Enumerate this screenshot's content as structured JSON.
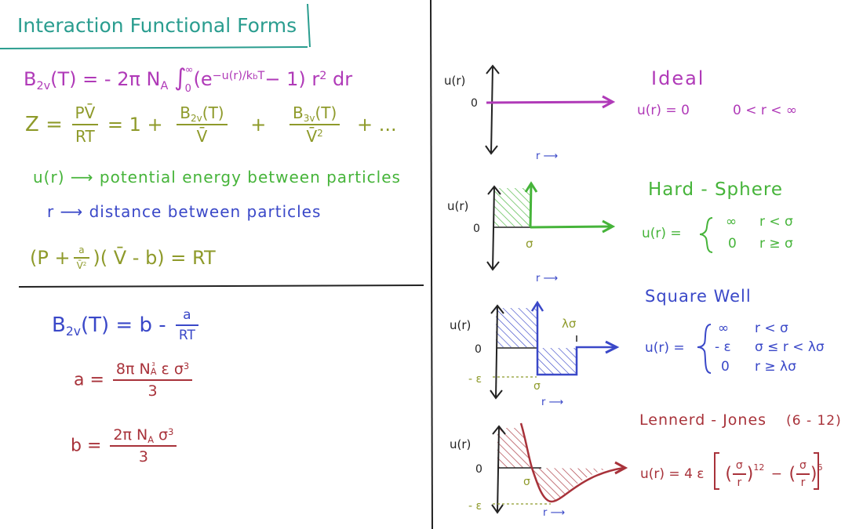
{
  "colors": {
    "teal": "#2a9d8f",
    "purple": "#b03ab8",
    "olive": "#8e9a2a",
    "green": "#46b43a",
    "blue": "#3a48c8",
    "red": "#a8323a",
    "ink": "#222222"
  },
  "title": "Interaction Functional Forms",
  "left": {
    "b2v_def": {
      "lhs_B": "B",
      "lhs_sub": "2v",
      "lhs_rest": "(T) = - 2π N",
      "NA_sub": "A",
      "int_sym": "∫",
      "int_upper": "∞",
      "int_lower": "0",
      "paren_open": "(e",
      "exp": "−u(r)/k",
      "exp_sub": "b",
      "exp_T": "T",
      "tail": "− 1) r",
      "r_sup": "2",
      "dr": " dr"
    },
    "z_eq": {
      "Z": "Z =",
      "f1_num": "PV̄",
      "f1_den": "RT",
      "eq_one": "= 1 +",
      "f2_num": "B",
      "f2_num_sub": "2v",
      "f2_num_rest": "(T)",
      "f2_den": "V̄",
      "plus": "+",
      "f3_num": "B",
      "f3_num_sub": "3v",
      "f3_num_rest": "(T)",
      "f3_den": "V̄",
      "f3_den_sup": "2",
      "dots": "+ ..."
    },
    "defs": {
      "u_line": "u(r) ⟶ potential energy between particles",
      "r_line": "r ⟶ distance between particles"
    },
    "vdw": {
      "open": "(P +",
      "frac_num": "a",
      "frac_den": "V̄",
      "frac_den_sup": "2",
      "middle": ")( V̄ - b) = RT"
    },
    "b2v_vdw": {
      "B": "B",
      "B_sub": "2v",
      "rest": "(T) = b -",
      "frac_num": "a",
      "frac_den": "RT"
    },
    "a_eq": {
      "lhs": "a =",
      "num_a": "8π N",
      "num_sub": "A",
      "num_sup": "3",
      "num_rest": " ε σ",
      "num_sup2": "3",
      "den": "3"
    },
    "b_eq": {
      "lhs": "b =",
      "num_a": "2π N",
      "num_sub": "A",
      "num_rest": " σ",
      "num_sup": "3",
      "den": "3"
    }
  },
  "plots": {
    "ideal": {
      "ylabel": "u(r)",
      "zero": "0",
      "xlabel": "r ⟶",
      "name": "Ideal",
      "formula": "u(r) = 0",
      "range": "0 < r < ∞"
    },
    "hard_sphere": {
      "ylabel": "u(r)",
      "zero": "0",
      "sigma": "σ",
      "xlabel": "r ⟶",
      "name": "Hard - Sphere",
      "lhs": "u(r) =",
      "cases": [
        {
          "value": "∞",
          "cond": "r < σ"
        },
        {
          "value": "0",
          "cond": "r ≥ σ"
        }
      ]
    },
    "square_well": {
      "ylabel": "u(r)",
      "zero": "0",
      "neg_eps": "- ε",
      "sigma": "σ",
      "lambda_sigma": "λσ",
      "xlabel": "r ⟶",
      "name": "Square Well",
      "lhs": "u(r) =",
      "cases": [
        {
          "value": "∞",
          "cond": "r < σ"
        },
        {
          "value": "- ε",
          "cond": "σ ≤ r < λσ"
        },
        {
          "value": "0",
          "cond": "r ≥ λσ"
        }
      ]
    },
    "lennard_jones": {
      "ylabel": "u(r)",
      "zero": "0",
      "neg_eps": "- ε",
      "sigma": "σ",
      "xlabel": "r ⟶",
      "name": "Lennerd - Jones",
      "name_suffix": "(6 - 12)",
      "lhs": "u(r) = 4 ε",
      "t1_num": "σ",
      "t1_den": "r",
      "t1_sup": "12",
      "minus": "−",
      "t2_num": "σ",
      "t2_den": "r",
      "t2_sup": "6"
    }
  }
}
